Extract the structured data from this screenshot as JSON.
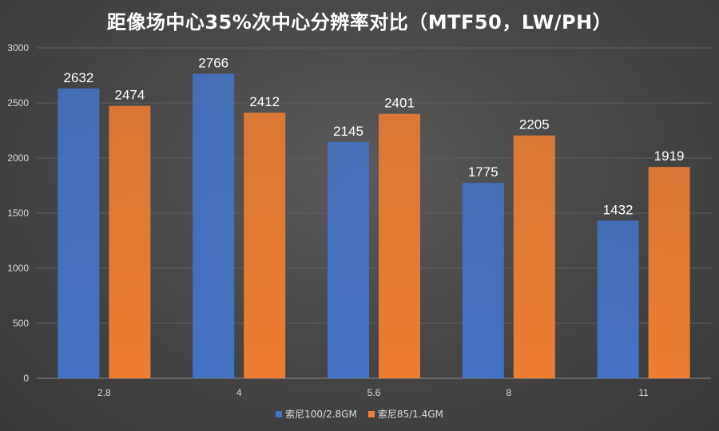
{
  "chart_data": {
    "type": "bar",
    "title": "距像场中心35%次中心分辨率对比（MTF50，LW/PH）",
    "categories": [
      "2.8",
      "4",
      "5.6",
      "8",
      "11"
    ],
    "series": [
      {
        "name": "索尼100/2.8GM",
        "values": [
          2632,
          2766,
          2145,
          1775,
          1432
        ],
        "color": "#4472c4"
      },
      {
        "name": "索尼85/1.4GM",
        "values": [
          2474,
          2412,
          2401,
          2205,
          1919
        ],
        "color": "#ed7d31"
      }
    ],
    "xlabel": "",
    "ylabel": "",
    "ylim": [
      0,
      3000
    ],
    "yticks": [
      0,
      500,
      1000,
      1500,
      2000,
      2500,
      3000
    ],
    "grid": true,
    "legend": "bottom"
  }
}
